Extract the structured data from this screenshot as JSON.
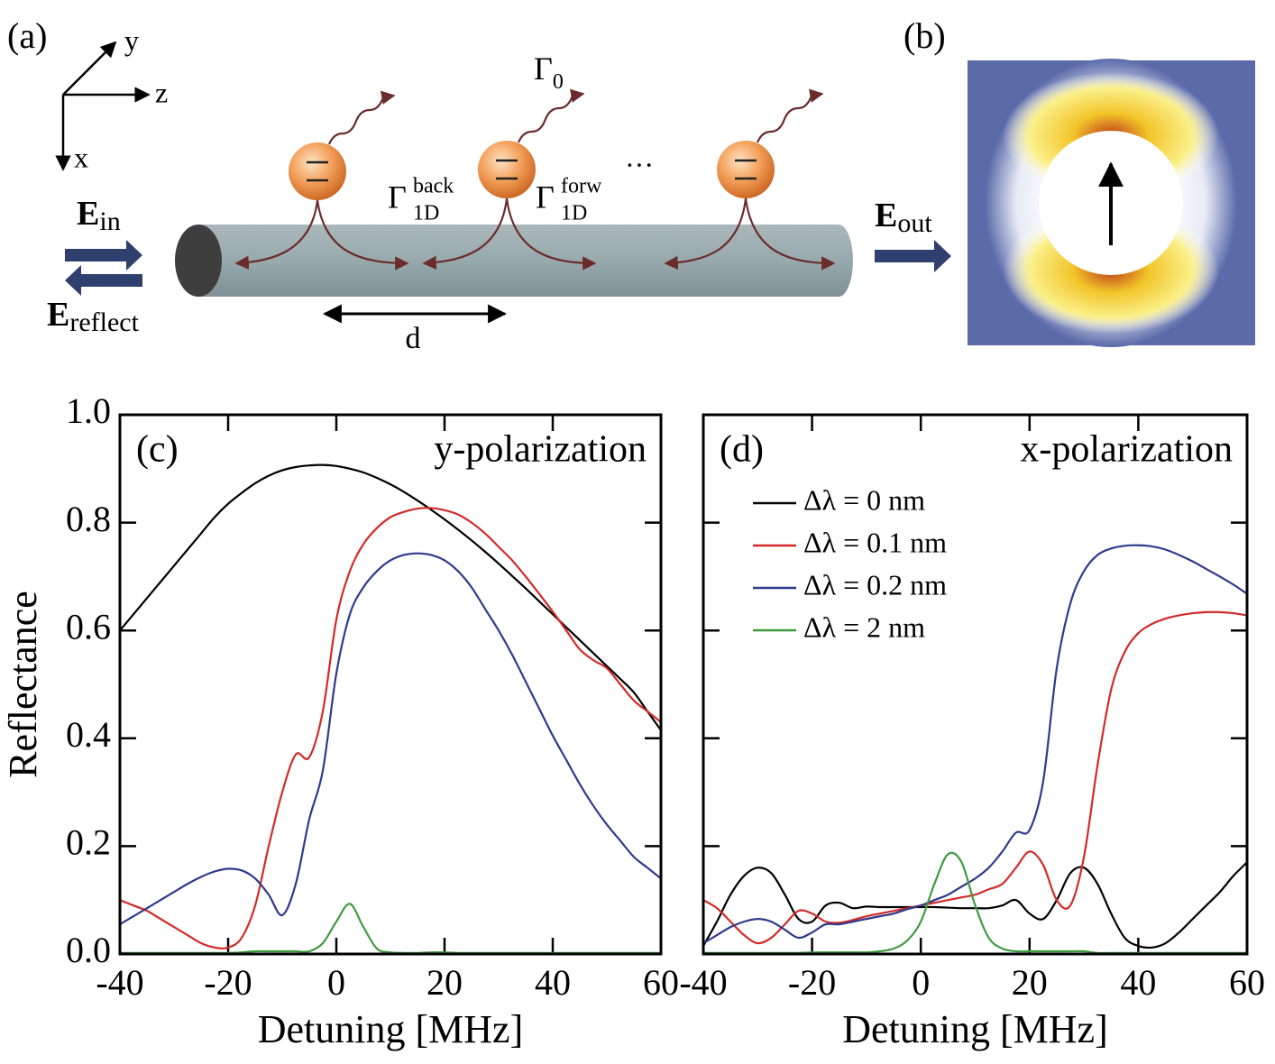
{
  "diagram": {
    "panel_a": "(a)",
    "panel_b": "(b)",
    "axis_y": "y",
    "axis_z": "z",
    "axis_x": "x",
    "gamma0": {
      "main": "Γ",
      "sub": "0"
    },
    "gamma_back": {
      "main": "Γ",
      "sup": "back",
      "sub": "1D"
    },
    "gamma_forw": {
      "main": "Γ",
      "sup": "forw",
      "sub": "1D"
    },
    "ellipsis": "···",
    "spacing": "d",
    "e_in": {
      "main": "E",
      "sub": "in"
    },
    "e_reflect": {
      "main": "E",
      "sub": "reflect"
    },
    "e_out": {
      "main": "E",
      "sub": "out"
    }
  },
  "chart_data": [
    {
      "type": "line",
      "label": "(c)",
      "annotation": "y-polarization",
      "xlabel": "Detuning [MHz]",
      "ylabel": "Reflectance",
      "x": [
        -40,
        -37.5,
        -35,
        -32.5,
        -30,
        -27.5,
        -25,
        -22.5,
        -20,
        -17.5,
        -15,
        -12.5,
        -10,
        -7.5,
        -5,
        -2.5,
        0,
        2.5,
        5,
        7.5,
        10,
        12.5,
        15,
        17.5,
        20,
        22.5,
        25,
        27.5,
        30,
        32.5,
        35,
        37.5,
        40,
        42.5,
        45,
        47.5,
        50,
        52.5,
        55,
        57.5,
        60
      ],
      "xlim": [
        -40,
        60
      ],
      "xticks": [
        -40,
        -20,
        0,
        20,
        40,
        60
      ],
      "ylim": [
        0,
        1
      ],
      "yticks": [
        {
          "value": 0,
          "label": "0.0"
        },
        0.2,
        0.4,
        0.6,
        0.8,
        {
          "value": 1,
          "label": "1.0"
        }
      ],
      "series": [
        {
          "color": "#000000",
          "values": [
            0.6,
            0.63,
            0.66,
            0.69,
            0.72,
            0.75,
            0.78,
            0.81,
            0.835,
            0.855,
            0.873,
            0.887,
            0.897,
            0.903,
            0.906,
            0.907,
            0.905,
            0.9,
            0.893,
            0.883,
            0.871,
            0.857,
            0.841,
            0.824,
            0.806,
            0.787,
            0.767,
            0.746,
            0.724,
            0.701,
            0.678,
            0.654,
            0.63,
            0.606,
            0.582,
            0.558,
            0.534,
            0.51,
            0.485,
            0.45,
            0.415
          ]
        },
        {
          "color": "#d42a2a",
          "values": [
            0.1,
            0.09,
            0.08,
            0.065,
            0.05,
            0.035,
            0.02,
            0.012,
            0.012,
            0.03,
            0.09,
            0.2,
            0.3,
            0.37,
            0.365,
            0.45,
            0.62,
            0.71,
            0.76,
            0.79,
            0.81,
            0.82,
            0.826,
            0.827,
            0.823,
            0.815,
            0.8,
            0.78,
            0.755,
            0.73,
            0.7,
            0.668,
            0.635,
            0.6,
            0.565,
            0.545,
            0.53,
            0.5,
            0.47,
            0.45,
            0.43
          ]
        },
        {
          "color": "#2e3a8c",
          "values": [
            0.055,
            0.07,
            0.085,
            0.1,
            0.115,
            0.13,
            0.143,
            0.153,
            0.158,
            0.155,
            0.14,
            0.11,
            0.072,
            0.13,
            0.25,
            0.34,
            0.52,
            0.63,
            0.68,
            0.71,
            0.73,
            0.74,
            0.743,
            0.74,
            0.73,
            0.71,
            0.68,
            0.64,
            0.6,
            0.555,
            0.505,
            0.455,
            0.405,
            0.36,
            0.315,
            0.275,
            0.24,
            0.21,
            0.18,
            0.16,
            0.14
          ]
        },
        {
          "color": "#3f9a3f",
          "values": [
            0.002,
            0.002,
            0.002,
            0.002,
            0.002,
            0.002,
            0.002,
            0.002,
            0.002,
            0.003,
            0.005,
            0.005,
            0.005,
            0.005,
            0.005,
            0.02,
            0.06,
            0.093,
            0.05,
            0.01,
            0.003,
            0.002,
            0.002,
            0.003,
            0.003,
            0.002,
            0.002,
            0.002,
            0.002,
            0.002,
            0.002,
            0.002,
            0.002,
            0.002,
            0.002,
            0.002,
            0.002,
            0.002,
            0.002,
            0.002,
            0.002
          ]
        }
      ]
    },
    {
      "type": "line",
      "label": "(d)",
      "annotation": "x-polarization",
      "xlabel": "Detuning [MHz]",
      "legend": "upper left",
      "x": [
        -40,
        -37.5,
        -35,
        -32.5,
        -30,
        -27.5,
        -25,
        -22.5,
        -20,
        -17.5,
        -15,
        -12.5,
        -10,
        -7.5,
        -5,
        -2.5,
        0,
        2.5,
        5,
        7.5,
        10,
        12.5,
        15,
        17.5,
        20,
        22.5,
        25,
        27.5,
        30,
        32.5,
        35,
        37.5,
        40,
        42.5,
        45,
        47.5,
        50,
        52.5,
        55,
        57.5,
        60
      ],
      "xlim": [
        -40,
        60
      ],
      "xticks": [
        -40,
        -20,
        0,
        20,
        40,
        60
      ],
      "ylim": [
        0,
        1
      ],
      "yticks": [
        0,
        0.2,
        0.4,
        0.6,
        0.8,
        1
      ],
      "ytick_labels": false,
      "series": [
        {
          "name": "Δλ = 0 nm",
          "color": "#000000",
          "values": [
            0.015,
            0.06,
            0.11,
            0.145,
            0.16,
            0.15,
            0.11,
            0.065,
            0.06,
            0.09,
            0.095,
            0.085,
            0.088,
            0.087,
            0.087,
            0.087,
            0.087,
            0.087,
            0.086,
            0.085,
            0.085,
            0.085,
            0.09,
            0.1,
            0.075,
            0.065,
            0.1,
            0.15,
            0.16,
            0.13,
            0.075,
            0.03,
            0.015,
            0.012,
            0.02,
            0.04,
            0.065,
            0.09,
            0.115,
            0.145,
            0.17
          ]
        },
        {
          "name": "Δλ = 0.1 nm",
          "color": "#d42a2a",
          "values": [
            0.1,
            0.085,
            0.06,
            0.035,
            0.02,
            0.03,
            0.055,
            0.08,
            0.075,
            0.06,
            0.058,
            0.063,
            0.07,
            0.075,
            0.08,
            0.085,
            0.09,
            0.095,
            0.1,
            0.105,
            0.11,
            0.12,
            0.13,
            0.16,
            0.19,
            0.165,
            0.1,
            0.09,
            0.18,
            0.35,
            0.49,
            0.56,
            0.595,
            0.612,
            0.622,
            0.628,
            0.632,
            0.634,
            0.634,
            0.632,
            0.628
          ]
        },
        {
          "name": "Δλ = 0.2 nm",
          "color": "#2e3a8c",
          "values": [
            0.02,
            0.035,
            0.05,
            0.06,
            0.065,
            0.06,
            0.045,
            0.03,
            0.04,
            0.055,
            0.055,
            0.06,
            0.065,
            0.07,
            0.075,
            0.083,
            0.09,
            0.1,
            0.11,
            0.125,
            0.14,
            0.16,
            0.19,
            0.225,
            0.23,
            0.32,
            0.53,
            0.65,
            0.71,
            0.74,
            0.752,
            0.757,
            0.758,
            0.756,
            0.75,
            0.74,
            0.728,
            0.714,
            0.7,
            0.685,
            0.668
          ]
        },
        {
          "name": "Δλ = 2 nm",
          "color": "#3f9a3f",
          "values": [
            0.002,
            0.002,
            0.002,
            0.002,
            0.002,
            0.002,
            0.002,
            0.002,
            0.003,
            0.003,
            0.003,
            0.003,
            0.003,
            0.005,
            0.01,
            0.025,
            0.06,
            0.13,
            0.185,
            0.17,
            0.09,
            0.03,
            0.01,
            0.005,
            0.005,
            0.005,
            0.005,
            0.005,
            0.005,
            0.002,
            0.002,
            0.002,
            0.002,
            0.002,
            0.002,
            0.002,
            0.002,
            0.002,
            0.002,
            0.002,
            0.002
          ]
        }
      ]
    }
  ]
}
